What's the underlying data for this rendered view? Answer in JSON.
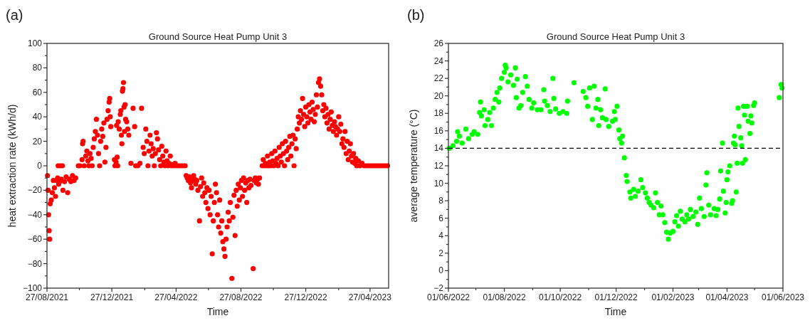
{
  "chart_data": [
    {
      "type": "scatter",
      "title": "Ground Source Heat Pump Unit 3",
      "xlabel": "Time",
      "ylabel": "heat extraction rate (kWh/d)",
      "annotations": [
        "(a)"
      ],
      "marker": "circle",
      "xlim": [
        "2021-08-27",
        "2023-06-01"
      ],
      "xticks": [
        {
          "value": "2021-08-27",
          "label": "27/08/2021"
        },
        {
          "value": "2021-10-27",
          "label": null
        },
        {
          "value": "2021-12-27",
          "label": "27/12/2021"
        },
        {
          "value": "2022-02-27",
          "label": null
        },
        {
          "value": "2022-04-27",
          "label": "27/04/2022"
        },
        {
          "value": "2022-06-27",
          "label": null
        },
        {
          "value": "2022-08-27",
          "label": "27/08/2022"
        },
        {
          "value": "2022-10-27",
          "label": null
        },
        {
          "value": "2022-12-27",
          "label": "27/12/2022"
        },
        {
          "value": "2023-02-27",
          "label": null
        },
        {
          "value": "2023-04-27",
          "label": "27/04/2023"
        }
      ],
      "ylim": [
        -100,
        100
      ],
      "yticks": [
        -100,
        {
          "value": -90,
          "label": null
        },
        -80,
        {
          "value": -70,
          "label": null
        },
        -60,
        {
          "value": -50,
          "label": null
        },
        -40,
        {
          "value": -30,
          "label": null
        },
        -20,
        {
          "value": -10,
          "label": null
        },
        0,
        {
          "value": 10,
          "label": null
        },
        20,
        {
          "value": 30,
          "label": null
        },
        40,
        {
          "value": 50,
          "label": null
        },
        60,
        {
          "value": 70,
          "label": null
        },
        80,
        {
          "value": 90,
          "label": null
        },
        100
      ],
      "series": [
        {
          "color": "#ff0000",
          "x": [
            "2021-08-28",
            "2021-08-29",
            "2021-08-30",
            "2021-08-31",
            "2021-09-01",
            "2021-09-02",
            "2021-09-04",
            "2021-09-06",
            "2021-09-08",
            "2021-09-10",
            "2021-09-12",
            "2021-09-14",
            "2021-09-16",
            "2021-09-17",
            "2021-09-18",
            "2021-09-20",
            "2021-09-21",
            "2021-09-23",
            "2021-09-25",
            "2021-09-26",
            "2021-09-29",
            "2021-10-02",
            "2021-10-05",
            "2021-10-08",
            "2021-10-11",
            "2021-10-14",
            "2021-10-17",
            "2021-10-20",
            "2021-10-25",
            "2021-10-28",
            "2021-11-01",
            "2021-11-02",
            "2021-11-03",
            "2021-11-05",
            "2021-11-08",
            "2021-11-10",
            "2021-11-12",
            "2021-11-14",
            "2021-11-16",
            "2021-11-18",
            "2021-11-20",
            "2021-11-22",
            "2021-11-24",
            "2021-11-26",
            "2021-11-28",
            "2021-11-30",
            "2021-12-02",
            "2021-12-04",
            "2021-12-06",
            "2021-12-08",
            "2021-12-10",
            "2021-12-12",
            "2021-12-14",
            "2021-12-16",
            "2021-12-18",
            "2021-12-20",
            "2021-12-22",
            "2021-12-23",
            "2021-12-24",
            "2021-12-25",
            "2022-01-01",
            "2022-01-02",
            "2022-01-04",
            "2022-01-05",
            "2022-01-06",
            "2022-01-07",
            "2022-01-08",
            "2022-01-10",
            "2022-01-12",
            "2022-01-13",
            "2022-01-14",
            "2022-01-15",
            "2022-01-16",
            "2022-01-17",
            "2022-01-18",
            "2022-01-19",
            "2022-01-20",
            "2022-01-21",
            "2022-01-22",
            "2022-01-24",
            "2022-01-26",
            "2022-01-28",
            "2022-02-01",
            "2022-02-05",
            "2022-02-08",
            "2022-02-10",
            "2022-02-14",
            "2022-02-18",
            "2022-02-21",
            "2022-02-24",
            "2022-02-26",
            "2022-03-01",
            "2022-03-03",
            "2022-03-05",
            "2022-03-07",
            "2022-03-09",
            "2022-03-11",
            "2022-03-13",
            "2022-03-15",
            "2022-03-17",
            "2022-03-19",
            "2022-03-21",
            "2022-03-23",
            "2022-03-25",
            "2022-03-27",
            "2022-03-29",
            "2022-03-31",
            "2022-04-02",
            "2022-04-04",
            "2022-04-06",
            "2022-04-08",
            "2022-04-10",
            "2022-04-12",
            "2022-04-14",
            "2022-04-16",
            "2022-04-18",
            "2022-04-20",
            "2022-04-22",
            "2022-04-25",
            "2022-04-28",
            "2022-05-02",
            "2022-05-06",
            "2022-05-10",
            "2022-05-14",
            "2022-05-16",
            "2022-05-18",
            "2022-05-20",
            "2022-05-22",
            "2022-05-24",
            "2022-05-26",
            "2022-05-28",
            "2022-05-30",
            "2022-06-01",
            "2022-06-03",
            "2022-06-05",
            "2022-06-07",
            "2022-06-10",
            "2022-06-12",
            "2022-06-14",
            "2022-06-16",
            "2022-06-18",
            "2022-06-20",
            "2022-06-22",
            "2022-06-24",
            "2022-06-26",
            "2022-06-28",
            "2022-06-30",
            "2022-07-02",
            "2022-07-04",
            "2022-07-06",
            "2022-07-08",
            "2022-07-10",
            "2022-07-12",
            "2022-07-14",
            "2022-07-16",
            "2022-07-18",
            "2022-07-20",
            "2022-07-22",
            "2022-07-24",
            "2022-07-26",
            "2022-07-28",
            "2022-07-30",
            "2022-08-01",
            "2022-08-03",
            "2022-08-05",
            "2022-08-07",
            "2022-08-10",
            "2022-08-12",
            "2022-08-14",
            "2022-08-16",
            "2022-08-18",
            "2022-08-20",
            "2022-08-22",
            "2022-08-24",
            "2022-08-26",
            "2022-08-28",
            "2022-08-30",
            "2022-09-01",
            "2022-09-03",
            "2022-09-05",
            "2022-09-07",
            "2022-09-09",
            "2022-09-11",
            "2022-09-13",
            "2022-09-15",
            "2022-09-19",
            "2022-09-21",
            "2022-09-23",
            "2022-09-25",
            "2022-09-27",
            "2022-09-29",
            "2022-10-01",
            "2022-10-06",
            "2022-10-08",
            "2022-10-10",
            "2022-10-12",
            "2022-10-14",
            "2022-10-16",
            "2022-10-18",
            "2022-10-20",
            "2022-10-22",
            "2022-10-24",
            "2022-10-26",
            "2022-10-28",
            "2022-10-30",
            "2022-11-01",
            "2022-11-03",
            "2022-11-05",
            "2022-11-07",
            "2022-11-09",
            "2022-11-11",
            "2022-11-13",
            "2022-11-15",
            "2022-11-17",
            "2022-11-19",
            "2022-11-21",
            "2022-11-23",
            "2022-11-25",
            "2022-11-27",
            "2022-11-29",
            "2022-12-01",
            "2022-12-03",
            "2022-12-05",
            "2022-12-07",
            "2022-12-09",
            "2022-12-11",
            "2022-12-13",
            "2022-12-15",
            "2022-12-17",
            "2022-12-19",
            "2022-12-21",
            "2022-12-23",
            "2022-12-25",
            "2022-12-27",
            "2022-12-29",
            "2022-12-31",
            "2023-01-02",
            "2023-01-04",
            "2023-01-06",
            "2023-01-08",
            "2023-01-10",
            "2023-01-12",
            "2023-01-14",
            "2023-01-16",
            "2023-01-18",
            "2023-01-20",
            "2023-01-22",
            "2023-01-24",
            "2023-01-26",
            "2023-01-28",
            "2023-01-30",
            "2023-02-01",
            "2023-02-03",
            "2023-02-05",
            "2023-02-07",
            "2023-02-09",
            "2023-02-11",
            "2023-02-13",
            "2023-02-15",
            "2023-02-17",
            "2023-02-19",
            "2023-02-21",
            "2023-02-23",
            "2023-02-25",
            "2023-02-27",
            "2023-03-01",
            "2023-03-03",
            "2023-03-05",
            "2023-03-07",
            "2023-03-09",
            "2023-03-11",
            "2023-03-13",
            "2023-03-15",
            "2023-03-17",
            "2023-03-19",
            "2023-03-21",
            "2023-03-23",
            "2023-03-25",
            "2023-03-27",
            "2023-03-29",
            "2023-03-31",
            "2023-04-02",
            "2023-04-05",
            "2023-04-08",
            "2023-04-12",
            "2023-04-16",
            "2023-04-20",
            "2023-04-24",
            "2023-04-28",
            "2023-05-02",
            "2023-05-06",
            "2023-05-10",
            "2023-05-14",
            "2023-05-18",
            "2023-05-22",
            "2023-05-26",
            "2023-05-30"
          ],
          "values": [
            -8,
            -20,
            -40,
            -53,
            -60,
            -31,
            -28,
            -22,
            -12,
            -18,
            -25,
            -12,
            -10,
            0,
            -15,
            -13,
            0,
            -11,
            0,
            -20,
            -13,
            -9,
            -22,
            -11,
            -13,
            -8,
            -12,
            -10,
            0,
            0,
            5,
            18,
            20,
            0,
            8,
            12,
            4,
            0,
            10,
            6,
            0,
            15,
            22,
            28,
            38,
            25,
            10,
            0,
            20,
            30,
            24,
            35,
            3,
            15,
            38,
            45,
            52,
            55,
            40,
            32,
            5,
            0,
            3,
            33,
            7,
            0,
            36,
            30,
            42,
            45,
            25,
            18,
            61,
            63,
            68,
            48,
            28,
            50,
            38,
            36,
            30,
            25,
            2,
            47,
            32,
            0,
            0,
            2,
            47,
            15,
            10,
            30,
            20,
            0,
            12,
            25,
            18,
            8,
            14,
            0,
            10,
            27,
            22,
            13,
            5,
            0,
            16,
            8,
            3,
            0,
            12,
            4,
            0,
            2,
            8,
            0,
            1,
            0,
            2,
            0,
            0,
            0,
            0,
            0,
            -8,
            -10,
            -12,
            -9,
            -14,
            -18,
            -12,
            -8,
            -11,
            -15,
            -12,
            -20,
            -45,
            -17,
            -10,
            -25,
            -14,
            -22,
            -30,
            -18,
            -35,
            -20,
            -40,
            -25,
            -72,
            -45,
            -30,
            -15,
            -22,
            -40,
            -50,
            -28,
            -55,
            -45,
            -62,
            -68,
            -74,
            -60,
            -50,
            -38,
            -45,
            -30,
            -92,
            -42,
            -24,
            -57,
            -20,
            -33,
            -15,
            -28,
            -18,
            -12,
            -25,
            -10,
            -20,
            -14,
            -30,
            -12,
            -18,
            -11,
            -16,
            -84,
            -12,
            -10,
            -14,
            -11,
            -15,
            -10,
            0,
            5,
            0,
            2,
            0,
            8,
            0,
            3,
            0,
            10,
            4,
            0,
            12,
            2,
            6,
            0,
            15,
            8,
            3,
            18,
            10,
            0,
            20,
            12,
            5,
            15,
            24,
            8,
            18,
            25,
            0,
            22,
            14,
            30,
            40,
            35,
            45,
            38,
            55,
            42,
            32,
            48,
            40,
            35,
            50,
            44,
            38,
            52,
            46,
            36,
            42,
            58,
            48,
            68,
            71,
            65,
            58,
            45,
            50,
            40,
            47,
            35,
            42,
            30,
            38,
            44,
            33,
            28,
            36,
            32,
            25,
            30,
            40,
            28,
            34,
            18,
            22,
            15,
            28,
            10,
            20,
            5,
            12,
            18,
            8,
            3,
            10,
            2,
            6,
            0,
            4,
            0,
            2,
            0,
            0,
            0,
            0,
            0,
            0,
            0,
            0,
            0,
            0,
            0,
            0
          ]
        }
      ]
    },
    {
      "type": "scatter",
      "title": "Ground Source Heat Pump Unit 3",
      "xlabel": "Time",
      "ylabel": "average temperature (°C)",
      "annotations": [
        "(b)"
      ],
      "marker": "circle",
      "xlim": [
        "2022-06-01",
        "2023-06-01"
      ],
      "xticks": [
        {
          "value": "2022-06-01",
          "label": "01/06/2022"
        },
        {
          "value": "2022-07-01",
          "label": null
        },
        {
          "value": "2022-08-01",
          "label": "01/08/2022"
        },
        {
          "value": "2022-09-01",
          "label": null
        },
        {
          "value": "2022-10-01",
          "label": "01/10/2022"
        },
        {
          "value": "2022-11-01",
          "label": null
        },
        {
          "value": "2022-12-01",
          "label": "01/12/2022"
        },
        {
          "value": "2023-01-01",
          "label": null
        },
        {
          "value": "2023-02-01",
          "label": "01/02/2023"
        },
        {
          "value": "2023-03-01",
          "label": null
        },
        {
          "value": "2023-04-01",
          "label": "01/04/2023"
        },
        {
          "value": "2023-05-01",
          "label": null
        },
        {
          "value": "2023-06-01",
          "label": "01/06/2023"
        }
      ],
      "ylim": [
        -2,
        26
      ],
      "yticks": [
        -2,
        {
          "value": -1,
          "label": null
        },
        0,
        {
          "value": 1,
          "label": null
        },
        2,
        {
          "value": 3,
          "label": null
        },
        4,
        {
          "value": 5,
          "label": null
        },
        6,
        {
          "value": 7,
          "label": null
        },
        8,
        {
          "value": 9,
          "label": null
        },
        10,
        {
          "value": 11,
          "label": null
        },
        12,
        {
          "value": 13,
          "label": null
        },
        14,
        {
          "value": 15,
          "label": null
        },
        16,
        {
          "value": 17,
          "label": null
        },
        18,
        {
          "value": 19,
          "label": null
        },
        20,
        {
          "value": 21,
          "label": null
        },
        22,
        {
          "value": 23,
          "label": null
        },
        24,
        {
          "value": 25,
          "label": null
        },
        26
      ],
      "ref_lines": [
        {
          "axis": "y",
          "value": 14,
          "color": "#000000",
          "line_style": "dashed"
        }
      ],
      "series": [
        {
          "color": "#00ff00",
          "x": [
            "2022-06-02",
            "2022-06-06",
            "2022-06-10",
            "2022-06-11",
            "2022-06-13",
            "2022-06-16",
            "2022-06-20",
            "2022-06-23",
            "2022-06-27",
            "2022-06-29",
            "2022-07-03",
            "2022-07-05",
            "2022-07-06",
            "2022-07-07",
            "2022-07-10",
            "2022-07-11",
            "2022-07-14",
            "2022-07-16",
            "2022-07-18",
            "2022-07-20",
            "2022-07-22",
            "2022-07-24",
            "2022-07-26",
            "2022-07-27",
            "2022-07-29",
            "2022-08-01",
            "2022-08-02",
            "2022-08-03",
            "2022-08-05",
            "2022-08-08",
            "2022-08-11",
            "2022-08-13",
            "2022-08-14",
            "2022-08-15",
            "2022-08-17",
            "2022-08-19",
            "2022-08-21",
            "2022-08-24",
            "2022-08-26",
            "2022-08-28",
            "2022-08-31",
            "2022-09-02",
            "2022-09-06",
            "2022-09-10",
            "2022-09-13",
            "2022-09-14",
            "2022-09-17",
            "2022-09-20",
            "2022-09-23",
            "2022-09-24",
            "2022-09-26",
            "2022-09-30",
            "2022-10-04",
            "2022-10-08",
            "2022-10-09",
            "2022-10-16",
            "2022-10-26",
            "2022-10-29",
            "2022-10-31",
            "2022-11-02",
            "2022-11-05",
            "2022-11-07",
            "2022-11-09",
            "2022-11-11",
            "2022-11-12",
            "2022-11-14",
            "2022-11-16",
            "2022-11-19",
            "2022-11-20",
            "2022-11-23",
            "2022-11-27",
            "2022-11-29",
            "2022-11-30",
            "2022-12-02",
            "2022-12-04",
            "2022-12-05",
            "2022-12-07",
            "2022-12-08",
            "2022-12-10",
            "2022-12-12",
            "2022-12-13",
            "2022-12-16",
            "2022-12-17",
            "2022-12-20",
            "2022-12-22",
            "2022-12-25",
            "2022-12-28",
            "2022-12-30",
            "2023-01-02",
            "2023-01-04",
            "2023-01-06",
            "2023-01-08",
            "2023-01-11",
            "2023-01-13",
            "2023-01-15",
            "2023-01-17",
            "2023-01-19",
            "2023-01-21",
            "2023-01-23",
            "2023-01-25",
            "2023-01-27",
            "2023-01-29",
            "2023-02-01",
            "2023-02-03",
            "2023-02-05",
            "2023-02-07",
            "2023-02-09",
            "2023-02-11",
            "2023-02-14",
            "2023-02-16",
            "2023-02-18",
            "2023-02-20",
            "2023-02-23",
            "2023-02-26",
            "2023-02-28",
            "2023-03-02",
            "2023-03-04",
            "2023-03-07",
            "2023-03-09",
            "2023-03-10",
            "2023-03-12",
            "2023-03-14",
            "2023-03-18",
            "2023-03-20",
            "2023-03-22",
            "2023-03-24",
            "2023-03-25",
            "2023-03-27",
            "2023-03-28",
            "2023-03-30",
            "2023-03-31",
            "2023-04-01",
            "2023-04-02",
            "2023-04-04",
            "2023-04-06",
            "2023-04-07",
            "2023-04-08",
            "2023-04-09",
            "2023-04-10",
            "2023-04-11",
            "2023-04-12",
            "2023-04-13",
            "2023-04-14",
            "2023-04-16",
            "2023-04-17",
            "2023-04-18",
            "2023-04-19",
            "2023-04-20",
            "2023-04-21",
            "2023-04-23",
            "2023-04-24",
            "2023-04-26",
            "2023-04-27",
            "2023-04-28",
            "2023-04-30",
            "2023-05-01",
            "2023-05-28",
            "2023-05-30",
            "2023-05-31"
          ],
          "values": [
            14.0,
            14.3,
            14.8,
            15.9,
            15.4,
            14.6,
            16.2,
            15.1,
            15.6,
            15.9,
            15.6,
            18.1,
            19.3,
            17.7,
            18.4,
            16.6,
            17.3,
            18.1,
            16.6,
            18.6,
            19.6,
            20.4,
            19.3,
            20.9,
            22.0,
            22.7,
            23.5,
            23.2,
            21.6,
            22.4,
            21.2,
            23.2,
            19.8,
            21.9,
            18.6,
            18.9,
            20.4,
            22.2,
            21.1,
            19.6,
            18.6,
            19.2,
            18.4,
            18.4,
            20.7,
            19.4,
            18.9,
            18.2,
            22.0,
            19.7,
            18.5,
            18.0,
            18.2,
            18.0,
            19.4,
            21.5,
            20.5,
            19.8,
            18.8,
            20.9,
            17.3,
            21.1,
            18.6,
            19.6,
            16.6,
            18.4,
            17.5,
            20.8,
            17.3,
            16.5,
            17.1,
            18.2,
            17.3,
            18.8,
            16.1,
            15.1,
            14.6,
            15.4,
            12.9,
            10.9,
            10.2,
            9.0,
            8.3,
            9.3,
            8.5,
            9.1,
            10.4,
            9.5,
            8.9,
            8.3,
            7.8,
            7.5,
            7.2,
            8.9,
            7.8,
            6.4,
            7.4,
            6.4,
            5.5,
            4.4,
            3.6,
            4.3,
            4.5,
            5.6,
            6.3,
            5.1,
            6.8,
            5.9,
            5.6,
            6.4,
            5.9,
            7.0,
            6.2,
            6.7,
            5.3,
            8.3,
            7.1,
            6.2,
            9.8,
            11.2,
            7.5,
            6.4,
            7.1,
            6.3,
            7.0,
            8.2,
            11.4,
            14.6,
            9.1,
            6.6,
            7.8,
            10.4,
            11.3,
            12.0,
            7.7,
            8.0,
            14.6,
            15.4,
            14.4,
            9.0,
            12.3,
            18.6,
            16.5,
            15.2,
            14.3,
            12.3,
            18.8,
            17.8,
            12.7,
            18.8,
            17.1,
            15.7,
            17.7,
            16.9,
            18.9,
            19.2,
            19.8,
            21.3,
            20.9
          ]
        }
      ]
    }
  ]
}
